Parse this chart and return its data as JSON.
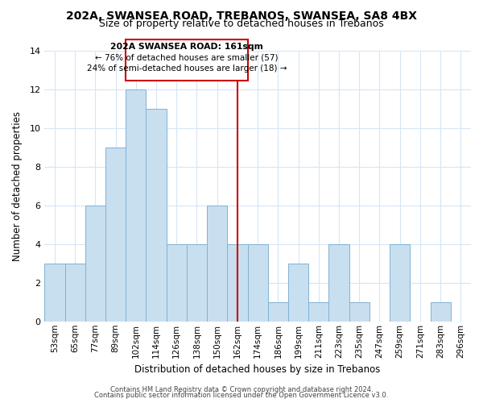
{
  "title_line1": "202A, SWANSEA ROAD, TREBANOS, SWANSEA, SA8 4BX",
  "title_line2": "Size of property relative to detached houses in Trebanos",
  "xlabel": "Distribution of detached houses by size in Trebanos",
  "ylabel": "Number of detached properties",
  "footer_line1": "Contains HM Land Registry data © Crown copyright and database right 2024.",
  "footer_line2": "Contains public sector information licensed under the Open Government Licence v3.0.",
  "bin_labels": [
    "53sqm",
    "65sqm",
    "77sqm",
    "89sqm",
    "102sqm",
    "114sqm",
    "126sqm",
    "138sqm",
    "150sqm",
    "162sqm",
    "174sqm",
    "186sqm",
    "199sqm",
    "211sqm",
    "223sqm",
    "235sqm",
    "247sqm",
    "259sqm",
    "271sqm",
    "283sqm",
    "296sqm"
  ],
  "bar_heights": [
    3,
    3,
    6,
    9,
    12,
    11,
    4,
    4,
    6,
    4,
    4,
    1,
    3,
    1,
    4,
    1,
    0,
    4,
    0,
    1,
    0
  ],
  "bar_color": "#c8dff0",
  "bar_edge_color": "#7fb3d3",
  "grid_color": "#d5e5f5",
  "annotation_box_edge": "#cc0000",
  "property_line_x_label": "162sqm",
  "property_line_color": "#cc0000",
  "annotation_title": "202A SWANSEA ROAD: 161sqm",
  "annotation_line2": "← 76% of detached houses are smaller (57)",
  "annotation_line3": "24% of semi-detached houses are larger (18) →",
  "ylim": [
    0,
    14
  ],
  "yticks": [
    0,
    2,
    4,
    6,
    8,
    10,
    12,
    14
  ],
  "background_color": "#ffffff",
  "title1_fontsize": 10,
  "title2_fontsize": 9
}
